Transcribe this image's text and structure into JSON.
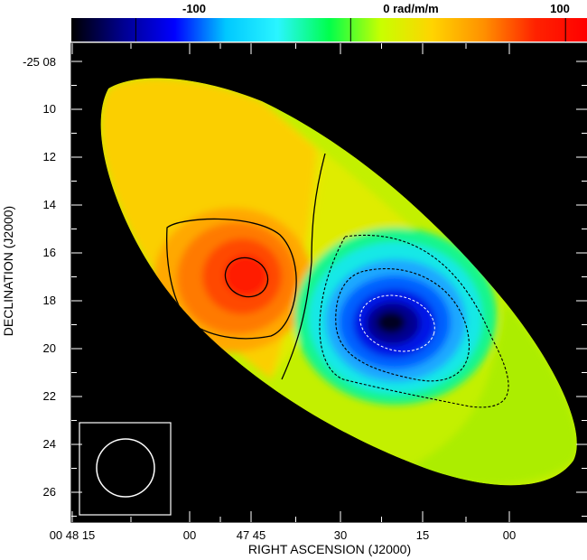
{
  "chart_data": {
    "type": "heatmap",
    "colorbar": {
      "range": [
        -130,
        110
      ],
      "tick_values": [
        -100,
        0,
        100
      ],
      "tick_labels": [
        "-100",
        "0 rad/m/m",
        "100"
      ],
      "colors": [
        "#000000",
        "#00008f",
        "#0000ff",
        "#00c8ff",
        "#2af5ff",
        "#00ff4c",
        "#c8ff00",
        "#ffd400",
        "#ff9000",
        "#ff2200",
        "#ff0000"
      ]
    },
    "xlabel": "RIGHT ASCENSION (J2000)",
    "ylabel": "DECLINATION (J2000)",
    "x_ticks": [
      "00 48 15",
      "00",
      "47 45",
      "30",
      "15",
      "00"
    ],
    "y_ticks": [
      "-25 08",
      "10",
      "12",
      "14",
      "16",
      "18",
      "20",
      "22",
      "24",
      "26"
    ],
    "ylim": [
      -25.45,
      -25.135
    ],
    "source": {
      "positive_lobe": {
        "ra": "00 47 45",
        "dec": "-25 17",
        "peak_rad_m2": 85
      },
      "negative_lobe": {
        "ra": "00 47 20",
        "dec": "-25 19",
        "peak_rad_m2": -130
      }
    },
    "beam": "circle",
    "background": "#000000"
  }
}
